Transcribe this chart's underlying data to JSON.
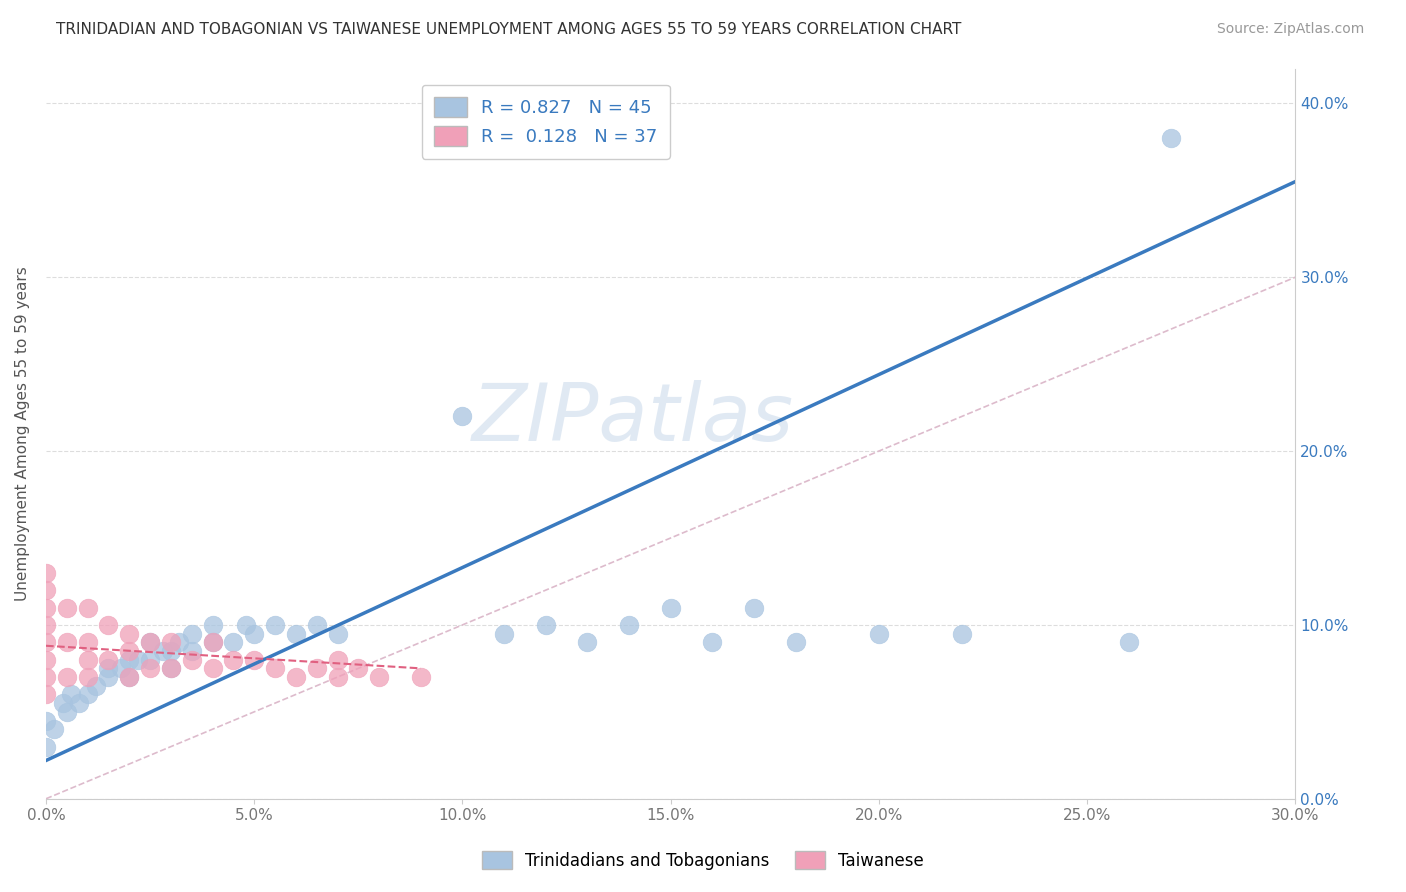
{
  "title": "TRINIDADIAN AND TOBAGONIAN VS TAIWANESE UNEMPLOYMENT AMONG AGES 55 TO 59 YEARS CORRELATION CHART",
  "source": "Source: ZipAtlas.com",
  "ylabel": "Unemployment Among Ages 55 to 59 years",
  "legend_labels": [
    "Trinidadians and Tobagonians",
    "Taiwanese"
  ],
  "blue_R": 0.827,
  "blue_N": 45,
  "pink_R": 0.128,
  "pink_N": 37,
  "xlim": [
    0.0,
    0.3
  ],
  "ylim": [
    0.0,
    0.42
  ],
  "xticks": [
    0.0,
    0.05,
    0.1,
    0.15,
    0.2,
    0.25,
    0.3
  ],
  "yticks": [
    0.0,
    0.1,
    0.2,
    0.3,
    0.4
  ],
  "xtick_labels": [
    "0.0%",
    "5.0%",
    "10.0%",
    "15.0%",
    "20.0%",
    "25.0%",
    "30.0%"
  ],
  "ytick_labels": [
    "0.0%",
    "10.0%",
    "20.0%",
    "30.0%",
    "40.0%"
  ],
  "blue_color": "#a8c4e0",
  "pink_color": "#f0a0b8",
  "blue_line_color": "#3a7abf",
  "pink_line_color": "#e06080",
  "diag_color": "#ddbbcc",
  "watermark": "ZIPatlas",
  "background_color": "#ffffff",
  "blue_scatter_x": [
    0.0,
    0.0,
    0.002,
    0.004,
    0.005,
    0.006,
    0.008,
    0.01,
    0.012,
    0.015,
    0.015,
    0.018,
    0.02,
    0.02,
    0.022,
    0.025,
    0.025,
    0.028,
    0.03,
    0.03,
    0.032,
    0.035,
    0.035,
    0.04,
    0.04,
    0.045,
    0.048,
    0.05,
    0.055,
    0.06,
    0.065,
    0.07,
    0.1,
    0.11,
    0.12,
    0.13,
    0.14,
    0.15,
    0.16,
    0.17,
    0.18,
    0.2,
    0.22,
    0.26,
    0.27
  ],
  "blue_scatter_y": [
    0.03,
    0.045,
    0.04,
    0.055,
    0.05,
    0.06,
    0.055,
    0.06,
    0.065,
    0.07,
    0.075,
    0.075,
    0.07,
    0.08,
    0.08,
    0.08,
    0.09,
    0.085,
    0.075,
    0.085,
    0.09,
    0.085,
    0.095,
    0.09,
    0.1,
    0.09,
    0.1,
    0.095,
    0.1,
    0.095,
    0.1,
    0.095,
    0.22,
    0.095,
    0.1,
    0.09,
    0.1,
    0.11,
    0.09,
    0.11,
    0.09,
    0.095,
    0.095,
    0.09,
    0.38
  ],
  "pink_scatter_x": [
    0.0,
    0.0,
    0.0,
    0.0,
    0.0,
    0.0,
    0.0,
    0.0,
    0.005,
    0.005,
    0.005,
    0.01,
    0.01,
    0.01,
    0.01,
    0.015,
    0.015,
    0.02,
    0.02,
    0.02,
    0.025,
    0.025,
    0.03,
    0.03,
    0.035,
    0.04,
    0.04,
    0.045,
    0.05,
    0.055,
    0.06,
    0.065,
    0.07,
    0.07,
    0.075,
    0.08,
    0.09
  ],
  "pink_scatter_y": [
    0.06,
    0.07,
    0.08,
    0.09,
    0.1,
    0.11,
    0.12,
    0.13,
    0.07,
    0.09,
    0.11,
    0.07,
    0.08,
    0.09,
    0.11,
    0.08,
    0.1,
    0.07,
    0.085,
    0.095,
    0.075,
    0.09,
    0.075,
    0.09,
    0.08,
    0.075,
    0.09,
    0.08,
    0.08,
    0.075,
    0.07,
    0.075,
    0.07,
    0.08,
    0.075,
    0.07,
    0.07
  ],
  "blue_line_x0": 0.0,
  "blue_line_y0": 0.022,
  "blue_line_x1": 0.3,
  "blue_line_y1": 0.355,
  "pink_line_x0": 0.0,
  "pink_line_y0": 0.088,
  "pink_line_x1": 0.09,
  "pink_line_y1": 0.075
}
